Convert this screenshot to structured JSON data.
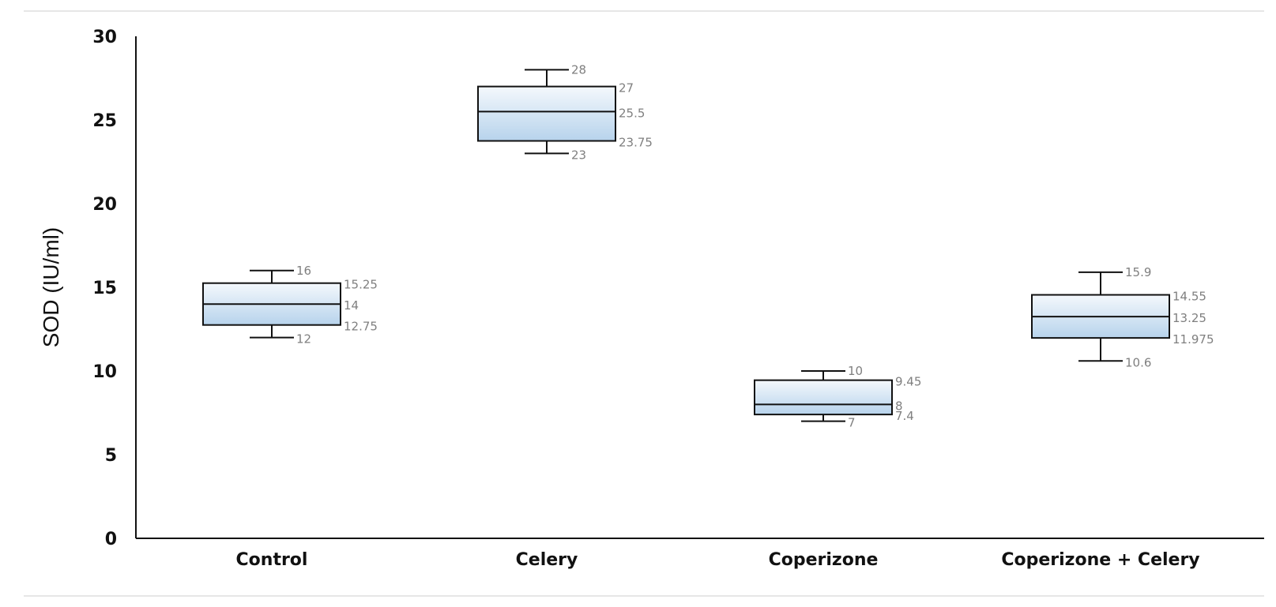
{
  "chart_data": {
    "type": "box",
    "ylabel": "SOD (IU/ml)",
    "xlabel": "",
    "ylim": [
      0,
      30
    ],
    "yticks": [
      "0",
      "5",
      "10",
      "15",
      "20",
      "25",
      "30"
    ],
    "grid": false,
    "categories": [
      "Control",
      "Celery",
      "Coperizone",
      "Coperizone + Celery"
    ],
    "boxes": [
      {
        "min": 12,
        "q1": 12.75,
        "median": 14,
        "q3": 15.25,
        "max": 16,
        "labels": {
          "min": "12",
          "q1": "12.75",
          "median": "14",
          "q3": "15.25",
          "max": "16"
        }
      },
      {
        "min": 23,
        "q1": 23.75,
        "median": 25.5,
        "q3": 27,
        "max": 28,
        "labels": {
          "min": "23",
          "q1": "23.75",
          "median": "25.5",
          "q3": "27",
          "max": "28"
        }
      },
      {
        "min": 7,
        "q1": 7.4,
        "median": 8,
        "q3": 9.45,
        "max": 10,
        "labels": {
          "min": "7",
          "q1": "7.4",
          "median": "8",
          "q3": "9.45",
          "max": "10"
        }
      },
      {
        "min": 10.6,
        "q1": 11.975,
        "median": 13.25,
        "q3": 14.55,
        "max": 15.9,
        "labels": {
          "min": "10.6",
          "q1": "11.975",
          "median": "13.25",
          "q3": "14.55",
          "max": "15.9"
        }
      }
    ],
    "colors": {
      "box_top": "#f4f8fc",
      "box_bottom": "#b7d3ec",
      "stroke": "#111111",
      "data_label": "#7f7f7f"
    }
  }
}
